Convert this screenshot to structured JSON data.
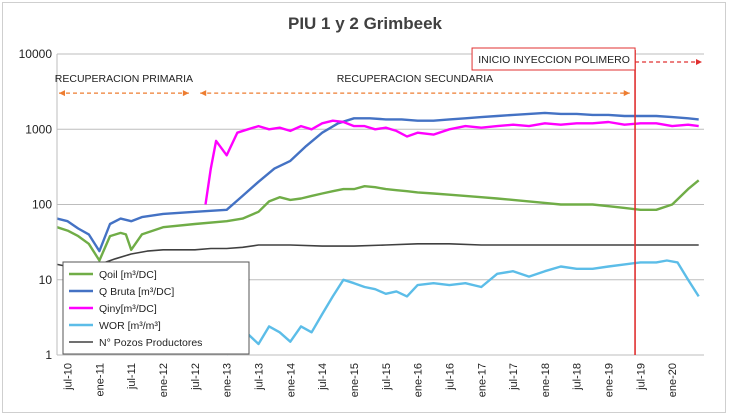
{
  "chart_data": {
    "type": "line",
    "title": "PIU 1 y 2 Grimbeek",
    "y_scale": "log",
    "ylim": [
      1,
      10000
    ],
    "y_ticks": [
      "1",
      "10",
      "100",
      "1000",
      "10000"
    ],
    "x_range": [
      "2010-05",
      "2020-07"
    ],
    "x_ticks": [
      "jul-10",
      "ene-11",
      "jul-11",
      "ene-12",
      "jul-12",
      "ene-13",
      "jul-13",
      "ene-14",
      "jul-14",
      "ene-15",
      "jul-15",
      "ene-16",
      "jul-16",
      "ene-17",
      "jul-17",
      "ene-18",
      "jul-18",
      "ene-19",
      "jul-19",
      "ene-20"
    ],
    "grid": "horizontal",
    "legend_position": "bottom-left",
    "annotations": {
      "primaria": "RECUPERACION PRIMARIA",
      "secundaria": "RECUPERACION SECUNDARIA",
      "polimero": "INICIO INYECCION POLIMERO"
    },
    "series": [
      {
        "name": "Qoil [m³/DC]",
        "color": "#70ad47",
        "x": [
          "2010-05",
          "2010-07",
          "2010-09",
          "2010-11",
          "2011-01",
          "2011-03",
          "2011-05",
          "2011-06",
          "2011-07",
          "2011-09",
          "2012-01",
          "2012-07",
          "2013-01",
          "2013-04",
          "2013-07",
          "2013-09",
          "2013-11",
          "2014-01",
          "2014-03",
          "2014-05",
          "2014-07",
          "2014-09",
          "2014-11",
          "2015-01",
          "2015-03",
          "2015-05",
          "2015-07",
          "2015-09",
          "2015-11",
          "2016-01",
          "2016-04",
          "2016-07",
          "2016-10",
          "2017-01",
          "2017-04",
          "2017-07",
          "2017-10",
          "2018-01",
          "2018-04",
          "2018-07",
          "2018-10",
          "2019-01",
          "2019-04",
          "2019-07",
          "2019-10",
          "2020-01",
          "2020-04",
          "2020-06"
        ],
        "values": [
          50,
          45,
          38,
          30,
          18,
          38,
          42,
          40,
          25,
          40,
          50,
          55,
          60,
          65,
          80,
          110,
          125,
          115,
          120,
          130,
          140,
          150,
          160,
          160,
          175,
          170,
          160,
          155,
          150,
          145,
          140,
          135,
          130,
          125,
          120,
          115,
          110,
          105,
          100,
          100,
          100,
          95,
          90,
          85,
          85,
          100,
          160,
          210
        ]
      },
      {
        "name": "Q Bruta [m³/DC]",
        "color": "#4472c4",
        "x": [
          "2010-05",
          "2010-07",
          "2010-09",
          "2010-11",
          "2011-01",
          "2011-03",
          "2011-05",
          "2011-07",
          "2011-09",
          "2012-01",
          "2012-07",
          "2013-01",
          "2013-04",
          "2013-07",
          "2013-10",
          "2014-01",
          "2014-04",
          "2014-07",
          "2014-10",
          "2015-01",
          "2015-04",
          "2015-07",
          "2015-10",
          "2016-01",
          "2016-04",
          "2016-07",
          "2016-10",
          "2017-01",
          "2017-04",
          "2017-07",
          "2017-10",
          "2018-01",
          "2018-04",
          "2018-07",
          "2018-10",
          "2019-01",
          "2019-04",
          "2019-07",
          "2019-10",
          "2020-01",
          "2020-04",
          "2020-06"
        ],
        "values": [
          65,
          60,
          48,
          40,
          24,
          55,
          65,
          60,
          68,
          75,
          80,
          85,
          130,
          200,
          300,
          380,
          600,
          900,
          1200,
          1400,
          1400,
          1350,
          1350,
          1300,
          1300,
          1350,
          1400,
          1450,
          1500,
          1550,
          1600,
          1650,
          1600,
          1600,
          1550,
          1550,
          1500,
          1500,
          1500,
          1450,
          1400,
          1350
        ]
      },
      {
        "name": "Qiny[m³/DC]",
        "color": "#ff00ff",
        "x": [
          "2012-09",
          "2012-10",
          "2012-11",
          "2013-01",
          "2013-03",
          "2013-05",
          "2013-07",
          "2013-09",
          "2013-11",
          "2014-01",
          "2014-03",
          "2014-05",
          "2014-07",
          "2014-09",
          "2014-11",
          "2015-01",
          "2015-03",
          "2015-05",
          "2015-07",
          "2015-09",
          "2015-11",
          "2016-01",
          "2016-04",
          "2016-07",
          "2016-10",
          "2017-01",
          "2017-04",
          "2017-07",
          "2017-10",
          "2018-01",
          "2018-04",
          "2018-07",
          "2018-10",
          "2019-01",
          "2019-04",
          "2019-07",
          "2019-10",
          "2020-01",
          "2020-04",
          "2020-06"
        ],
        "values": [
          100,
          300,
          700,
          450,
          900,
          1000,
          1100,
          1000,
          1050,
          950,
          1100,
          1000,
          1200,
          1300,
          1250,
          1100,
          1100,
          1000,
          1050,
          950,
          800,
          900,
          850,
          1000,
          1100,
          1050,
          1100,
          1150,
          1100,
          1200,
          1150,
          1200,
          1200,
          1250,
          1150,
          1200,
          1200,
          1100,
          1150,
          1100
        ]
      },
      {
        "name": "WOR [m³/m³]",
        "color": "#5cbde8",
        "x": [
          "2013-01",
          "2013-03",
          "2013-05",
          "2013-07",
          "2013-09",
          "2013-11",
          "2014-01",
          "2014-03",
          "2014-05",
          "2014-07",
          "2014-09",
          "2014-11",
          "2015-01",
          "2015-03",
          "2015-05",
          "2015-07",
          "2015-09",
          "2015-11",
          "2016-01",
          "2016-04",
          "2016-07",
          "2016-10",
          "2017-01",
          "2017-04",
          "2017-07",
          "2017-10",
          "2018-01",
          "2018-04",
          "2018-07",
          "2018-10",
          "2019-01",
          "2019-04",
          "2019-07",
          "2019-10",
          "2019-12",
          "2020-02",
          "2020-04",
          "2020-06"
        ],
        "values": [
          1.0,
          1.5,
          1.9,
          1.4,
          2.4,
          2.0,
          1.5,
          2.4,
          2.0,
          3.5,
          6.0,
          10.0,
          9.0,
          8.0,
          7.5,
          6.5,
          7.0,
          6.0,
          8.5,
          9.0,
          8.5,
          9.0,
          8.0,
          12.0,
          13.0,
          11.0,
          13.0,
          15.0,
          14.0,
          14.0,
          15.0,
          16.0,
          17.0,
          17.0,
          18.0,
          17.0,
          10.0,
          6.0
        ]
      },
      {
        "name": "N° Pozos Productores",
        "color": "#404040",
        "x": [
          "2010-05",
          "2010-07",
          "2010-09",
          "2010-11",
          "2011-01",
          "2011-04",
          "2011-07",
          "2011-10",
          "2012-01",
          "2012-04",
          "2012-07",
          "2012-10",
          "2013-01",
          "2013-04",
          "2013-07",
          "2014-01",
          "2014-07",
          "2015-01",
          "2015-07",
          "2016-01",
          "2016-07",
          "2017-01",
          "2017-07",
          "2018-01",
          "2018-07",
          "2019-01",
          "2019-07",
          "2020-01",
          "2020-06"
        ],
        "values": [
          16,
          15,
          14,
          13,
          16,
          19,
          22,
          24,
          25,
          25,
          25,
          26,
          26,
          27,
          29,
          29,
          28,
          28,
          29,
          30,
          30,
          29,
          29,
          29,
          29,
          29,
          29,
          29,
          29
        ]
      }
    ]
  }
}
